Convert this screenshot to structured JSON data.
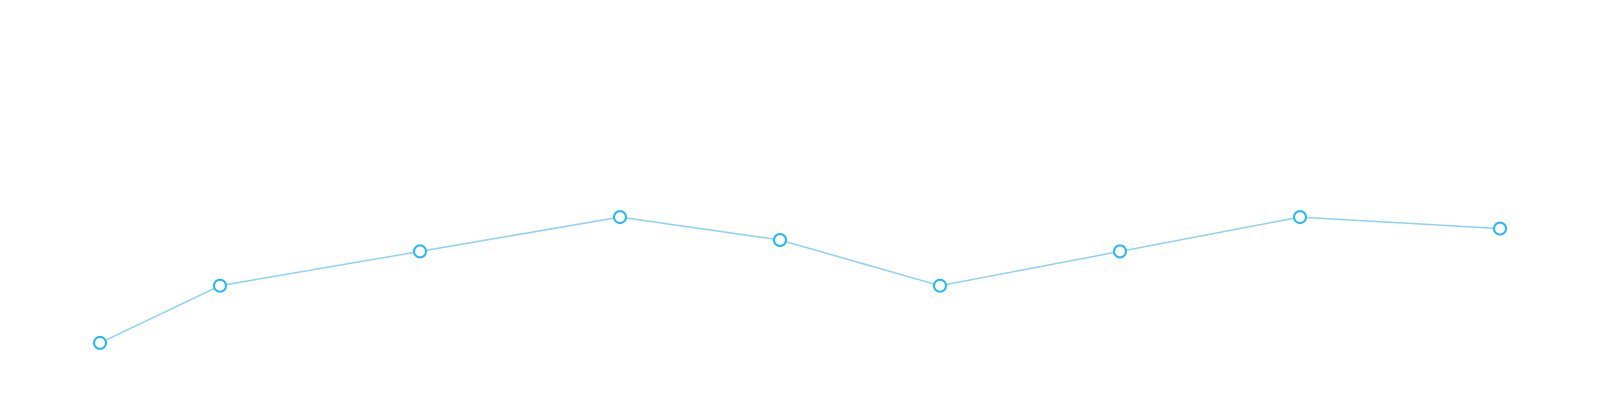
{
  "chart_data": {
    "type": "line",
    "x": [
      0,
      1.2,
      3.2,
      5.2,
      6.8,
      8.4,
      10.2,
      12.0,
      14.0
    ],
    "series": [
      {
        "values": [
          0,
          1.0,
          1.6,
          2.2,
          1.8,
          1.0,
          1.6,
          2.2,
          2.0
        ]
      }
    ],
    "xlim": [
      -1,
      15
    ],
    "ylim": [
      -1,
      6
    ],
    "grid": false,
    "legend": "none",
    "colors": {
      "line": "#8fd0f3",
      "marker": "#29b6f6"
    }
  }
}
